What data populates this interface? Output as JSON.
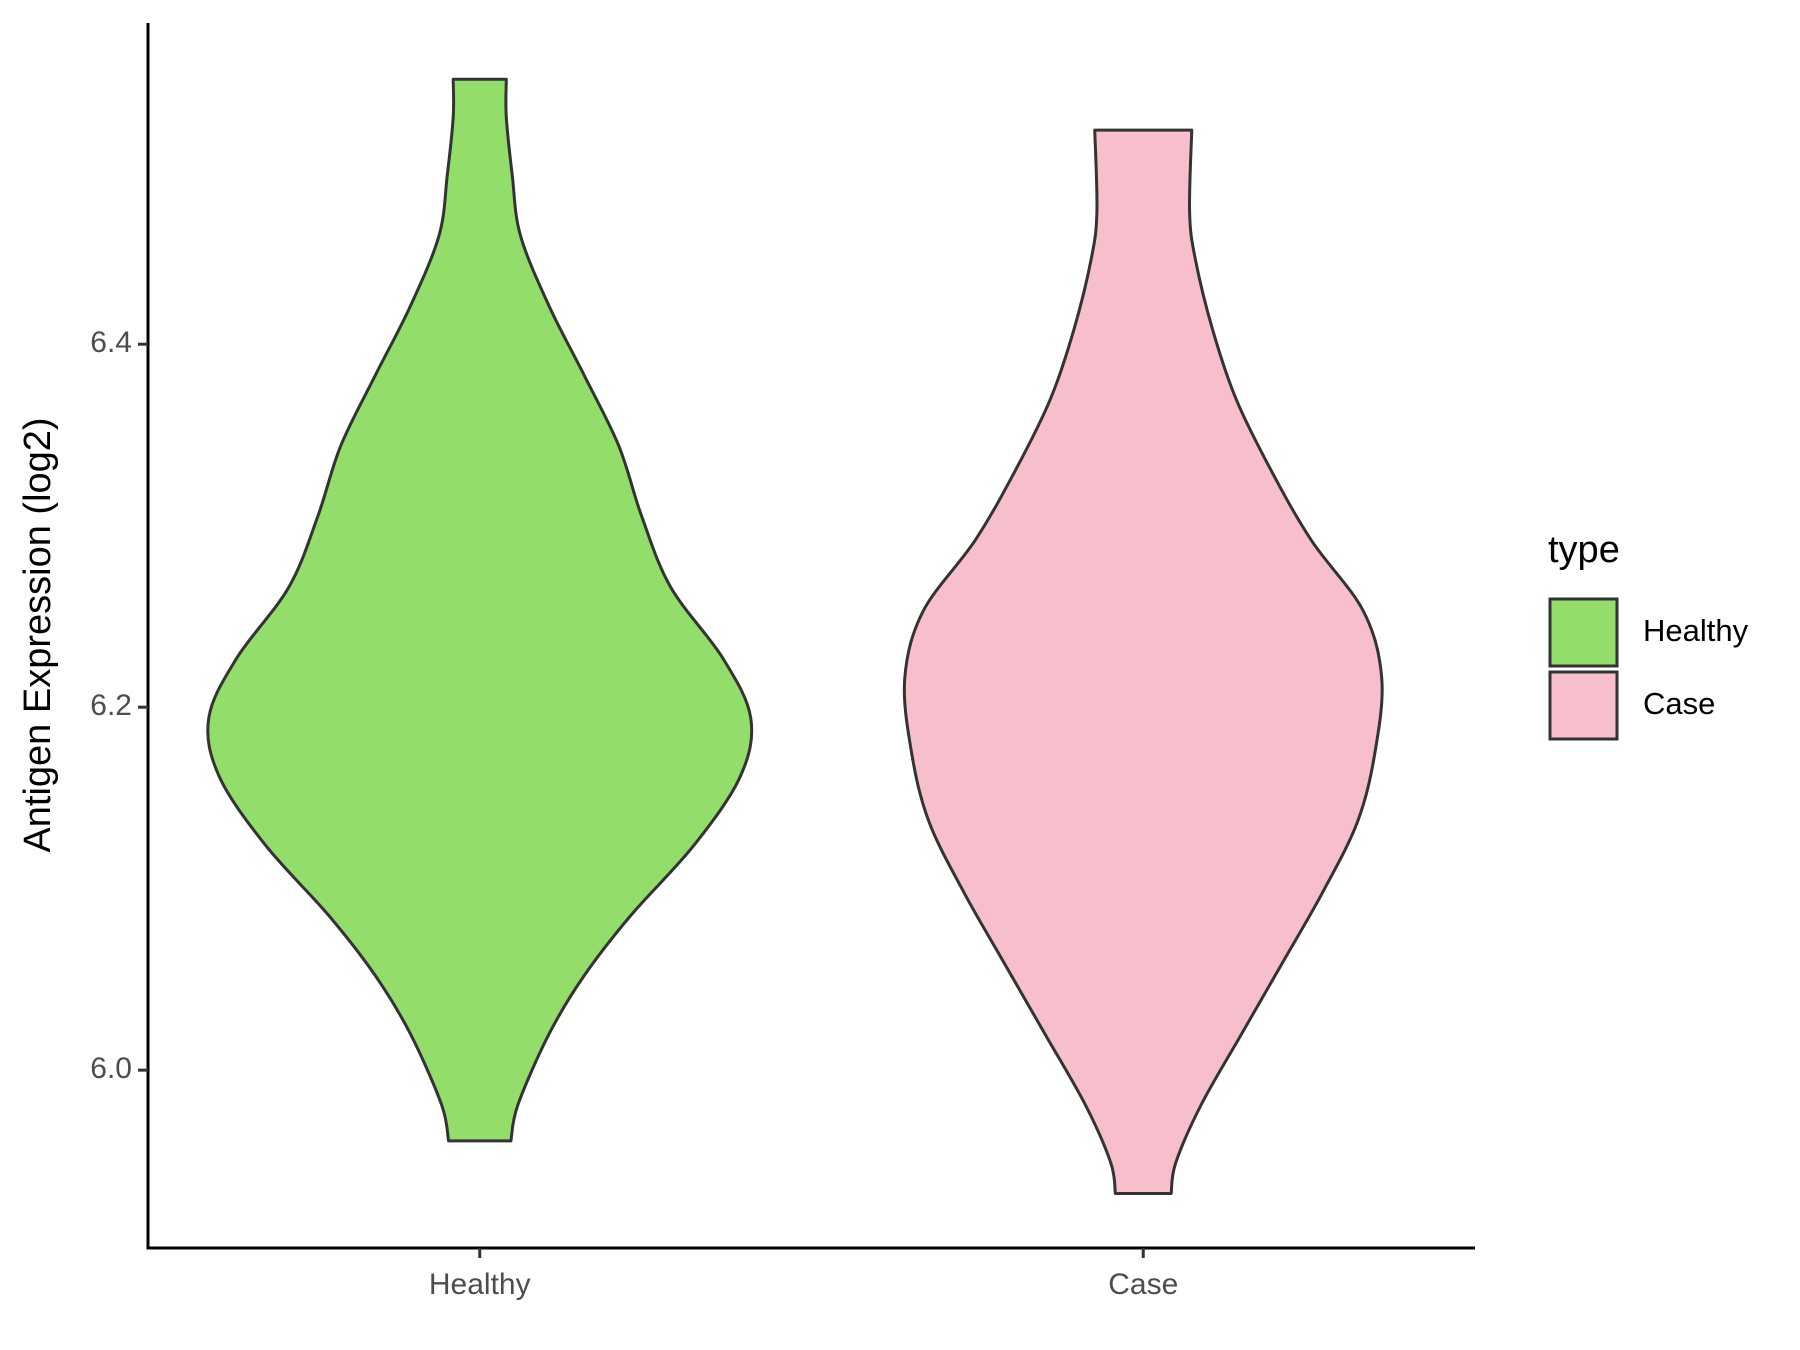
{
  "chart_data": {
    "type": "violin",
    "y_label": "Antigen Expression (log2)",
    "categories": [
      "Healthy",
      "Case"
    ],
    "legend_title": "type",
    "legend_position": "right",
    "ylim": [
      5.902,
      6.577
    ],
    "yticks": [
      {
        "value": 6,
        "label": "6.0"
      },
      6.2,
      6.4
    ],
    "series": [
      {
        "name": "Healthy",
        "color": "#93dd6a",
        "y": [
          5.961,
          5.981,
          6.02,
          6.052,
          6.085,
          6.124,
          6.162,
          6.194,
          6.227,
          6.266,
          6.305,
          6.344,
          6.383,
          6.421,
          6.46,
          6.493,
          6.525,
          6.546
        ],
        "density": [
          0.115,
          0.141,
          0.256,
          0.385,
          0.556,
          0.791,
          0.962,
          1,
          0.897,
          0.705,
          0.598,
          0.513,
          0.385,
          0.256,
          0.15,
          0.12,
          0.098,
          0.098
        ]
      },
      {
        "name": "Case",
        "color": "#f7bfcb",
        "y": [
          5.932,
          5.949,
          5.981,
          6.02,
          6.059,
          6.098,
          6.137,
          6.175,
          6.216,
          6.253,
          6.292,
          6.331,
          6.37,
          6.408,
          6.447,
          6.473,
          6.518
        ],
        "density": [
          0.103,
          0.12,
          0.214,
          0.363,
          0.513,
          0.662,
          0.791,
          0.855,
          0.88,
          0.812,
          0.62,
          0.47,
          0.342,
          0.256,
          0.192,
          0.171,
          0.179
        ]
      }
    ]
  }
}
